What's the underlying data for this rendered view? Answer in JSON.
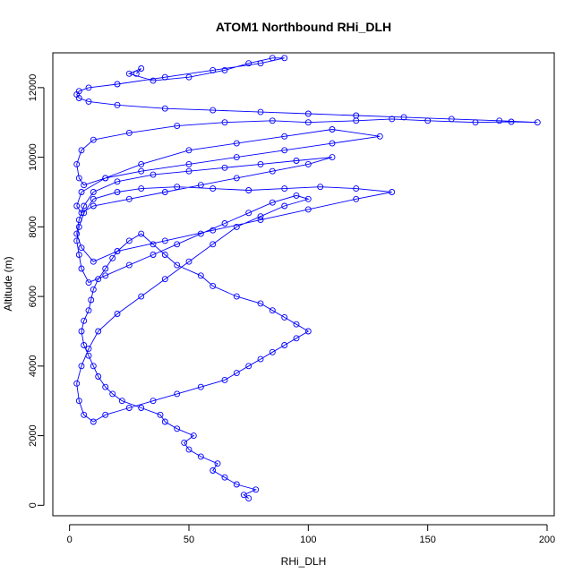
{
  "chart_data": {
    "type": "scatter",
    "title": "ATOM1 Northbound RHi_DLH",
    "xlabel": "RHi_DLH",
    "ylabel": "Altitude (m)",
    "xlim": [
      -7,
      203
    ],
    "ylim": [
      -300,
      13000
    ],
    "x_ticks": [
      0,
      50,
      100,
      150,
      200
    ],
    "y_ticks": [
      0,
      2000,
      4000,
      6000,
      8000,
      10000,
      12000
    ],
    "grid": false,
    "legend": "none",
    "markers": "open-circles",
    "connected": true,
    "color": "#0000ff",
    "series": [
      {
        "x": [
          75,
          73,
          78,
          70,
          65,
          60,
          62,
          55,
          50,
          48,
          52,
          45,
          40,
          38,
          30,
          22,
          18,
          15,
          12,
          10,
          8,
          6,
          5,
          6,
          8,
          9,
          10,
          12,
          15,
          18,
          20,
          25,
          30,
          35,
          40,
          45,
          55,
          60,
          70,
          80,
          85,
          90,
          95,
          100,
          95,
          90,
          85,
          80,
          75,
          70,
          65,
          55,
          45,
          35,
          25,
          15,
          10,
          6,
          4,
          3,
          5,
          8,
          12,
          20,
          30,
          40,
          50,
          60,
          70,
          80,
          90,
          100,
          95,
          85,
          75,
          65,
          55,
          45,
          35,
          25,
          15,
          8,
          5,
          4,
          3,
          4,
          6,
          10,
          20,
          30,
          45,
          60,
          75,
          90,
          105,
          120,
          135,
          120,
          100,
          80,
          60,
          40,
          20,
          10,
          5,
          3,
          4,
          6,
          10,
          20,
          35,
          50,
          65,
          80,
          95,
          110,
          100,
          85,
          70,
          55,
          40,
          25,
          10,
          5,
          3,
          5,
          15,
          30,
          50,
          70,
          90,
          110,
          130,
          110,
          90,
          70,
          50,
          30,
          15,
          6,
          4,
          3,
          5,
          10,
          25,
          45,
          65,
          85,
          100,
          120,
          135,
          150,
          170,
          185,
          196,
          180,
          160,
          140,
          120,
          100,
          80,
          60,
          40,
          20,
          8,
          4,
          3,
          4,
          8,
          20,
          40,
          60,
          80,
          90,
          85,
          75,
          65,
          50,
          35,
          25,
          30,
          28
        ],
        "y": [
          200,
          300,
          450,
          600,
          800,
          1000,
          1200,
          1400,
          1600,
          1800,
          2000,
          2200,
          2400,
          2600,
          2800,
          3000,
          3200,
          3400,
          3700,
          4000,
          4300,
          4600,
          5000,
          5300,
          5600,
          5900,
          6200,
          6500,
          6800,
          7100,
          7300,
          7600,
          7800,
          7500,
          7200,
          6900,
          6600,
          6300,
          6000,
          5800,
          5600,
          5400,
          5200,
          5000,
          4800,
          4600,
          4400,
          4200,
          4000,
          3800,
          3600,
          3400,
          3200,
          3000,
          2800,
          2600,
          2400,
          2600,
          3000,
          3500,
          4000,
          4500,
          5000,
          5500,
          6000,
          6500,
          7000,
          7500,
          8000,
          8300,
          8600,
          8800,
          8900,
          8700,
          8400,
          8100,
          7800,
          7500,
          7200,
          6900,
          6600,
          6400,
          6800,
          7200,
          7600,
          8000,
          8400,
          8800,
          9000,
          9100,
          9150,
          9100,
          9050,
          9100,
          9150,
          9100,
          9000,
          8800,
          8500,
          8200,
          7900,
          7600,
          7300,
          7000,
          7400,
          7800,
          8200,
          8600,
          9000,
          9300,
          9500,
          9600,
          9700,
          9800,
          9900,
          10000,
          9800,
          9600,
          9400,
          9200,
          9000,
          8800,
          8600,
          8400,
          8600,
          9000,
          9400,
          9800,
          10200,
          10400,
          10600,
          10800,
          10600,
          10400,
          10200,
          10000,
          9800,
          9600,
          9400,
          9200,
          9400,
          9800,
          10200,
          10500,
          10700,
          10900,
          11000,
          11050,
          11000,
          11050,
          11100,
          11050,
          11000,
          11020,
          11000,
          11050,
          11100,
          11150,
          11200,
          11250,
          11300,
          11350,
          11400,
          11500,
          11600,
          11700,
          11800,
          11900,
          12000,
          12100,
          12300,
          12500,
          12700,
          12850,
          12850,
          12700,
          12500,
          12300,
          12200,
          12400,
          12550,
          12400
        ]
      }
    ]
  }
}
